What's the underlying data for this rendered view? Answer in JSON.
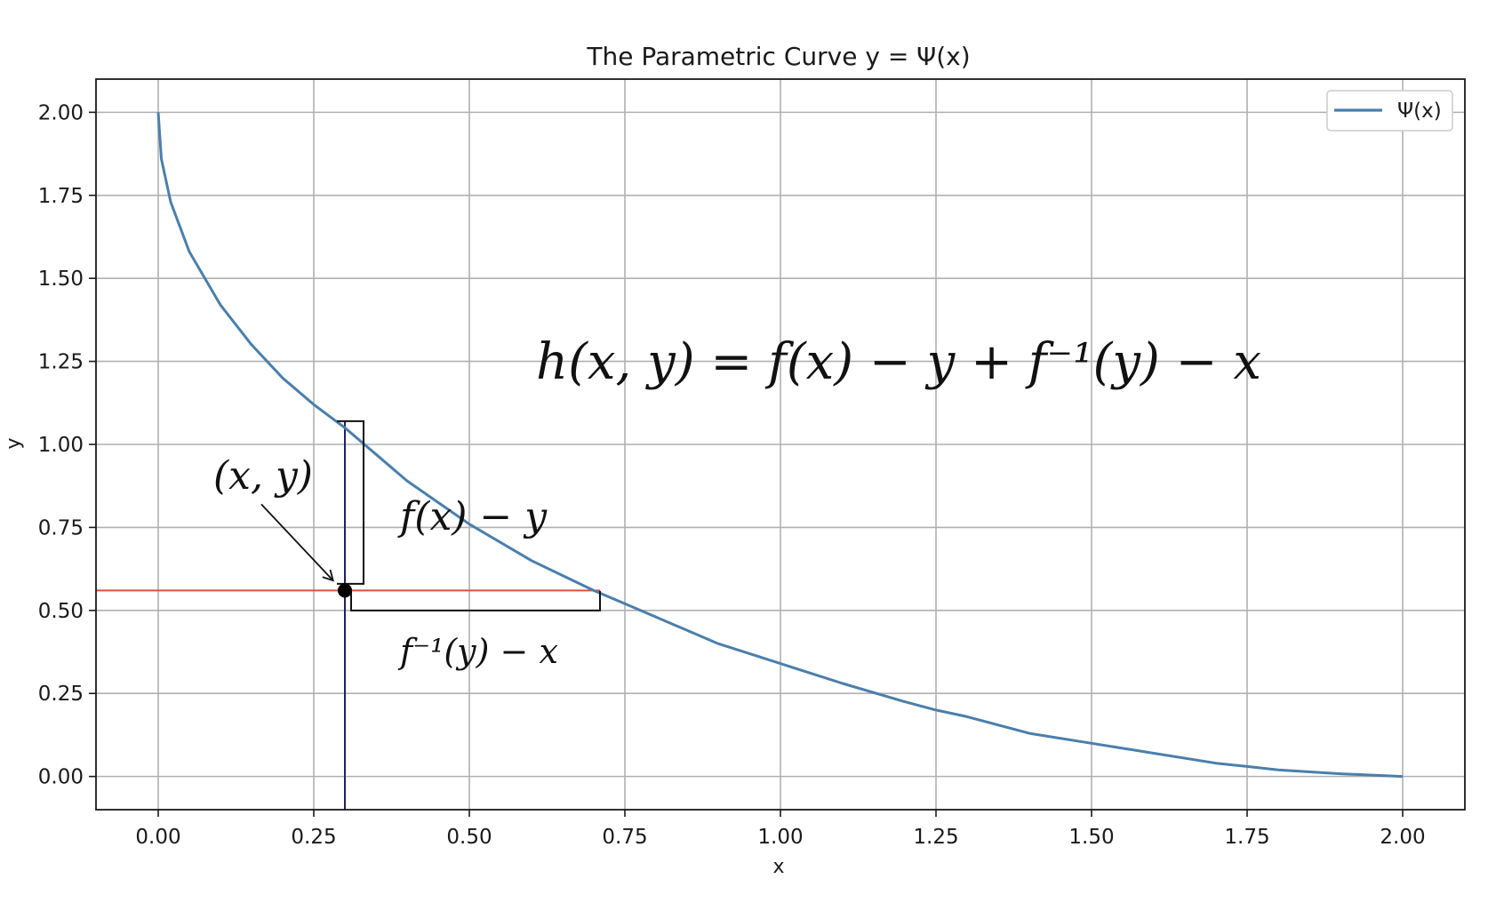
{
  "chart_data": {
    "type": "line",
    "title": "The Parametric Curve y = Ψ(x)",
    "xlabel": "x",
    "ylabel": "y",
    "xlim": [
      -0.1,
      2.1
    ],
    "ylim": [
      -0.1,
      2.1
    ],
    "x_ticks": [
      "0.00",
      "0.25",
      "0.50",
      "0.75",
      "1.00",
      "1.25",
      "1.50",
      "1.75",
      "2.00"
    ],
    "y_ticks": [
      "0.00",
      "0.25",
      "0.50",
      "0.75",
      "1.00",
      "1.25",
      "1.50",
      "1.75",
      "2.00"
    ],
    "grid": true,
    "legend": {
      "placement": "top-right",
      "entries": [
        "Ψ(x)"
      ]
    },
    "series": [
      {
        "name": "Ψ(x)",
        "color": "#4a7fac",
        "x": [
          0.0,
          0.005,
          0.02,
          0.05,
          0.1,
          0.15,
          0.2,
          0.25,
          0.3,
          0.35,
          0.4,
          0.5,
          0.6,
          0.7,
          0.75,
          0.8,
          0.9,
          1.0,
          1.1,
          1.2,
          1.25,
          1.3,
          1.4,
          1.5,
          1.6,
          1.7,
          1.75,
          1.8,
          1.9,
          2.0
        ],
        "y": [
          2.0,
          1.86,
          1.73,
          1.58,
          1.42,
          1.3,
          1.2,
          1.12,
          1.05,
          0.97,
          0.89,
          0.76,
          0.65,
          0.56,
          0.52,
          0.48,
          0.4,
          0.34,
          0.28,
          0.225,
          0.2,
          0.18,
          0.13,
          0.1,
          0.07,
          0.04,
          0.03,
          0.02,
          0.008,
          0.0
        ]
      }
    ],
    "point": {
      "x": 0.3,
      "y": 0.56,
      "label": "(x, y)"
    },
    "vertical_line": {
      "x": 0.3,
      "color": "#1f1f6b"
    },
    "horizontal_line": {
      "y": 0.56,
      "color": "#d9503f"
    },
    "vertical_bracket": {
      "x": 0.33,
      "y_from": 0.58,
      "y_to": 1.07,
      "label": "f(x) − y"
    },
    "horizontal_bracket": {
      "x_from": 0.31,
      "x_to": 0.71,
      "y": 0.5,
      "label": "f⁻¹(y) − x"
    },
    "equation": "h(x, y) = f(x) − y + f⁻¹(y) − x"
  }
}
